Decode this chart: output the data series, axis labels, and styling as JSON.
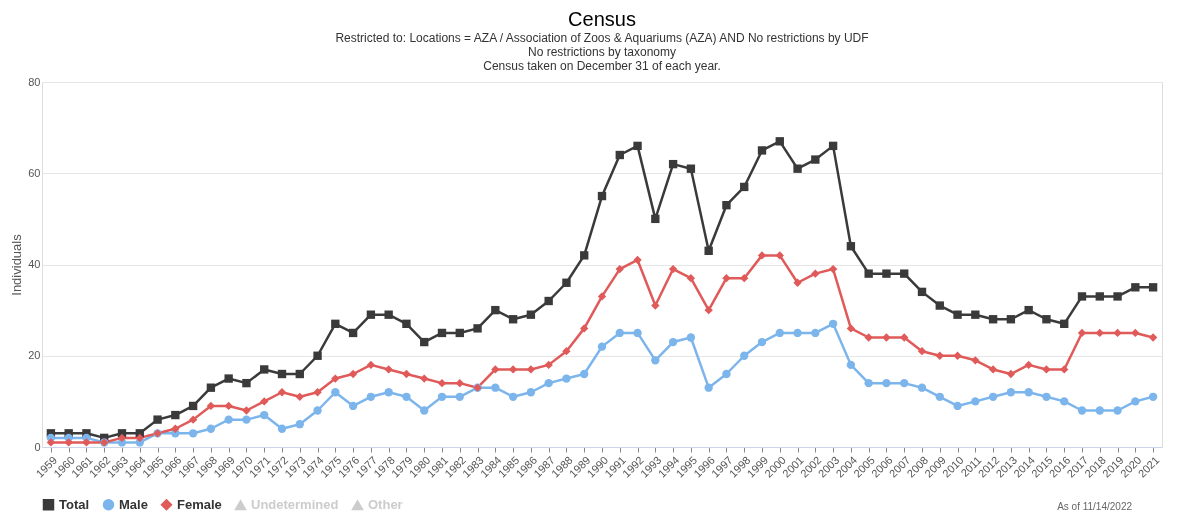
{
  "chart_data": {
    "type": "line",
    "title": "Census",
    "subtitle": [
      "Restricted to: Locations = AZA / Association of Zoos & Aquariums (AZA) AND No restrictions by UDF",
      "No restrictions by taxonomy",
      "Census taken on December 31 of each year."
    ],
    "ylabel": "Individuals",
    "categories": [
      "1959",
      "1960",
      "1961",
      "1962",
      "1963",
      "1964",
      "1965",
      "1966",
      "1967",
      "1968",
      "1969",
      "1970",
      "1971",
      "1972",
      "1973",
      "1974",
      "1975",
      "1976",
      "1977",
      "1978",
      "1979",
      "1980",
      "1981",
      "1982",
      "1983",
      "1984",
      "1985",
      "1986",
      "1987",
      "1988",
      "1989",
      "1990",
      "1991",
      "1992",
      "1993",
      "1994",
      "1995",
      "1996",
      "1997",
      "1998",
      "1999",
      "2000",
      "2001",
      "2002",
      "2003",
      "2004",
      "2005",
      "2006",
      "2007",
      "2008",
      "2009",
      "2010",
      "2011",
      "2012",
      "2013",
      "2014",
      "2015",
      "2016",
      "2017",
      "2018",
      "2019",
      "2020",
      "2021"
    ],
    "series": [
      {
        "name": "Total",
        "color": "#3a3a3a",
        "marker": "square",
        "values": [
          3,
          3,
          3,
          2,
          3,
          3,
          6,
          7,
          9,
          13,
          15,
          14,
          17,
          16,
          16,
          20,
          27,
          25,
          29,
          29,
          27,
          23,
          25,
          25,
          26,
          30,
          28,
          29,
          32,
          36,
          42,
          55,
          64,
          66,
          50,
          62,
          61,
          43,
          53,
          57,
          65,
          67,
          61,
          63,
          66,
          44,
          38,
          38,
          38,
          34,
          31,
          29,
          29,
          28,
          28,
          30,
          28,
          27,
          33,
          33,
          33,
          35,
          35
        ]
      },
      {
        "name": "Male",
        "color": "#7cb5ec",
        "marker": "circle",
        "values": [
          2,
          2,
          2,
          1,
          1,
          1,
          3,
          3,
          3,
          4,
          6,
          6,
          7,
          4,
          5,
          8,
          12,
          9,
          11,
          12,
          11,
          8,
          11,
          11,
          13,
          13,
          11,
          12,
          14,
          15,
          16,
          22,
          25,
          25,
          19,
          23,
          24,
          13,
          16,
          20,
          23,
          25,
          25,
          25,
          27,
          18,
          14,
          14,
          14,
          13,
          11,
          9,
          10,
          11,
          12,
          12,
          11,
          10,
          8,
          8,
          8,
          10,
          11
        ]
      },
      {
        "name": "Female",
        "color": "#e05a5a",
        "marker": "diamond",
        "values": [
          1,
          1,
          1,
          1,
          2,
          2,
          3,
          4,
          6,
          9,
          9,
          8,
          10,
          12,
          11,
          12,
          15,
          16,
          18,
          17,
          16,
          15,
          14,
          14,
          13,
          17,
          17,
          17,
          18,
          21,
          26,
          33,
          39,
          41,
          31,
          39,
          37,
          30,
          37,
          37,
          42,
          42,
          36,
          38,
          39,
          26,
          24,
          24,
          24,
          21,
          20,
          20,
          19,
          17,
          16,
          18,
          17,
          17,
          25,
          25,
          25,
          25,
          24
        ]
      },
      {
        "name": "Undetermined",
        "color": "#cccccc",
        "marker": "triangle",
        "values": [
          null,
          null,
          null,
          null,
          null,
          null,
          null,
          null,
          null,
          null,
          null,
          null,
          null,
          null,
          null,
          null,
          null,
          null,
          null,
          null,
          null,
          null,
          null,
          null,
          null,
          null,
          null,
          null,
          null,
          null,
          null,
          null,
          null,
          null,
          null,
          null,
          null,
          null,
          null,
          null,
          null,
          null,
          null,
          null,
          null,
          null,
          null,
          null,
          null,
          null,
          null,
          null,
          null,
          null,
          null,
          null,
          null,
          null,
          null,
          null,
          null,
          null,
          null
        ]
      },
      {
        "name": "Other",
        "color": "#cccccc",
        "marker": "triangle",
        "values": [
          null,
          null,
          null,
          null,
          null,
          null,
          null,
          null,
          null,
          null,
          null,
          null,
          null,
          null,
          null,
          null,
          null,
          null,
          null,
          null,
          null,
          null,
          null,
          null,
          null,
          null,
          null,
          null,
          null,
          null,
          null,
          null,
          null,
          null,
          null,
          null,
          null,
          null,
          null,
          null,
          null,
          null,
          null,
          null,
          null,
          null,
          null,
          null,
          null,
          null,
          null,
          null,
          null,
          null,
          null,
          null,
          null,
          null,
          null,
          null,
          null,
          null,
          null
        ]
      }
    ],
    "ylim": [
      0,
      80
    ],
    "yticks": [
      0,
      20,
      40,
      60,
      80
    ],
    "grid": "y",
    "legend": "bottom",
    "annotations": [
      "As of 11/14/2022"
    ]
  }
}
